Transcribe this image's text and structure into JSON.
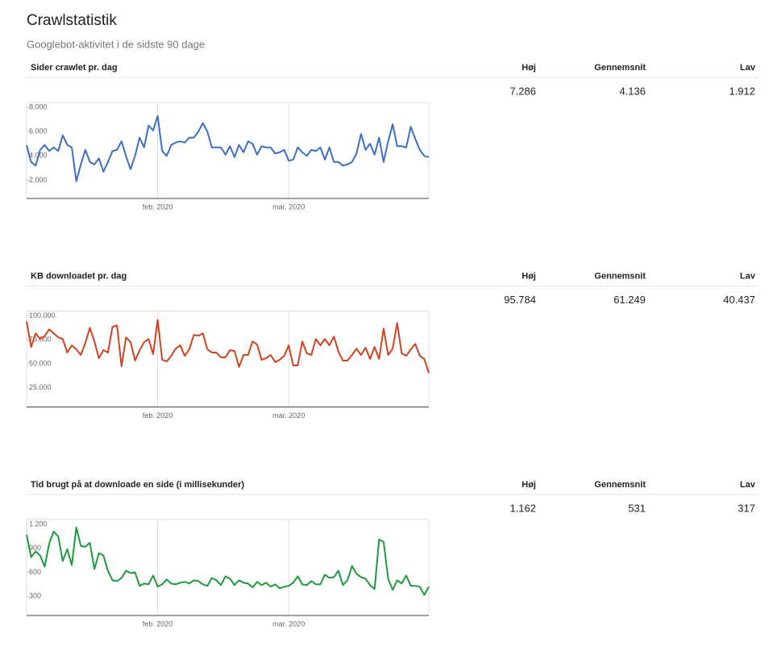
{
  "header": {
    "title": "Crawlstatistik",
    "subtitle": "Googlebot-aktivitet i de sidste 90 dage"
  },
  "sections": [
    {
      "stats": {
        "headers": [
          "Høj",
          "Gennemsnit",
          "Lav"
        ],
        "values": [
          "7.286",
          "4.136",
          "1.912"
        ]
      }
    },
    {
      "stats": {
        "headers": [
          "Høj",
          "Gennemsnit",
          "Lav"
        ],
        "values": [
          "95.784",
          "61.249",
          "40.437"
        ]
      }
    },
    {
      "stats": {
        "headers": [
          "Høj",
          "Gennemsnit",
          "Lav"
        ],
        "values": [
          "1.162",
          "531",
          "317"
        ]
      }
    }
  ],
  "chart_data": [
    {
      "type": "line",
      "title": "Sider crawlet pr. dag",
      "categories": [
        null,
        null,
        null,
        null,
        null,
        null,
        null,
        null,
        null,
        null,
        null,
        null,
        null,
        null,
        null,
        null,
        null,
        null,
        null,
        null,
        null,
        null,
        null,
        null,
        null,
        null,
        null,
        null,
        null,
        "feb. 2020",
        null,
        null,
        null,
        null,
        null,
        null,
        null,
        null,
        null,
        null,
        null,
        null,
        null,
        null,
        null,
        null,
        null,
        null,
        null,
        null,
        null,
        null,
        null,
        null,
        null,
        null,
        null,
        null,
        "mar. 2020",
        null,
        null,
        null,
        null,
        null,
        null,
        null,
        null,
        null,
        null,
        null,
        null,
        null,
        null,
        null,
        null,
        null,
        null,
        null,
        null,
        null,
        null,
        null,
        null,
        null,
        null,
        null,
        null,
        null,
        null,
        null
      ],
      "series": [
        {
          "color": "#3c6ec6",
          "values": [
            4870,
            3500,
            3200,
            4500,
            4900,
            4400,
            4700,
            4400,
            5700,
            4900,
            4700,
            1912,
            3300,
            4500,
            3500,
            3300,
            3800,
            2700,
            3500,
            4400,
            4500,
            5200,
            4000,
            2900,
            4000,
            5500,
            4700,
            6500,
            6100,
            7286,
            4400,
            4000,
            4900,
            5100,
            5200,
            5100,
            5500,
            5500,
            6000,
            6700,
            6000,
            4700,
            4700,
            4700,
            4100,
            4800,
            3900,
            4900,
            4300,
            5200,
            5000,
            4100,
            4800,
            4700,
            4700,
            4200,
            4300,
            4500,
            3600,
            3700,
            4700,
            4300,
            4000,
            4500,
            4400,
            4700,
            3700,
            4700,
            3500,
            3500,
            3200,
            3300,
            3500,
            4200,
            5800,
            4500,
            5000,
            4100,
            5500,
            3500,
            5200,
            6600,
            4800,
            4800,
            4700,
            6400,
            5400,
            4500,
            4000,
            3900
          ]
        }
      ],
      "ylim": [
        500,
        8400
      ],
      "yticks": [
        {
          "value": 2000,
          "label": "2.000"
        },
        {
          "value": 4000,
          "label": "4.000"
        },
        {
          "value": 6000,
          "label": "6.000"
        },
        {
          "value": 8000,
          "label": "8.000"
        }
      ]
    },
    {
      "type": "line",
      "title": "KB downloadet pr. dag",
      "categories": [
        null,
        null,
        null,
        null,
        null,
        null,
        null,
        null,
        null,
        null,
        null,
        null,
        null,
        null,
        null,
        null,
        null,
        null,
        null,
        null,
        null,
        null,
        null,
        null,
        null,
        null,
        null,
        null,
        null,
        "feb. 2020",
        null,
        null,
        null,
        null,
        null,
        null,
        null,
        null,
        null,
        null,
        null,
        null,
        null,
        null,
        null,
        null,
        null,
        null,
        null,
        null,
        null,
        null,
        null,
        null,
        null,
        null,
        null,
        null,
        "mar. 2020",
        null,
        null,
        null,
        null,
        null,
        null,
        null,
        null,
        null,
        null,
        null,
        null,
        null,
        null,
        null,
        null,
        null,
        null,
        null,
        null,
        null,
        null,
        null,
        null,
        null,
        null,
        null,
        null,
        null,
        null,
        null
      ],
      "series": [
        {
          "color": "#d2421f",
          "values": [
            94000,
            67500,
            81700,
            75800,
            79000,
            85800,
            81700,
            77500,
            75800,
            61700,
            69200,
            65000,
            59200,
            71700,
            87500,
            73300,
            55800,
            64200,
            61700,
            88300,
            90000,
            47500,
            77500,
            72500,
            53300,
            64000,
            72500,
            75800,
            60000,
            95784,
            54200,
            52500,
            58300,
            65800,
            69200,
            58300,
            65000,
            80000,
            79200,
            81700,
            65000,
            61700,
            61700,
            56700,
            56700,
            64200,
            63300,
            46700,
            59200,
            59200,
            73300,
            70000,
            54200,
            55800,
            59200,
            51700,
            54200,
            58300,
            69200,
            48300,
            48300,
            73300,
            60800,
            59200,
            75800,
            69200,
            75800,
            69200,
            78300,
            62500,
            53300,
            53300,
            59200,
            65800,
            59200,
            66700,
            55000,
            67500,
            55000,
            86700,
            59200,
            65800,
            92500,
            60800,
            58300,
            65000,
            70800,
            58300,
            55000,
            40437
          ]
        }
      ],
      "ylim": [
        5000,
        105000
      ],
      "yticks": [
        {
          "value": 25000,
          "label": "25.000"
        },
        {
          "value": 50000,
          "label": "50.000"
        },
        {
          "value": 75000,
          "label": "75.000"
        },
        {
          "value": 100000,
          "label": "100.000"
        }
      ]
    },
    {
      "type": "line",
      "title": "Tid brugt på at downloade en side (i millisekunder)",
      "categories": [
        null,
        null,
        null,
        null,
        null,
        null,
        null,
        null,
        null,
        null,
        null,
        null,
        null,
        null,
        null,
        null,
        null,
        null,
        null,
        null,
        null,
        null,
        null,
        null,
        null,
        null,
        null,
        null,
        null,
        "feb. 2020",
        null,
        null,
        null,
        null,
        null,
        null,
        null,
        null,
        null,
        null,
        null,
        null,
        null,
        null,
        null,
        null,
        null,
        null,
        null,
        null,
        null,
        null,
        null,
        null,
        null,
        null,
        null,
        null,
        "mar. 2020",
        null,
        null,
        null,
        null,
        null,
        null,
        null,
        null,
        null,
        null,
        null,
        null,
        null,
        null,
        null,
        null,
        null,
        null,
        null,
        null,
        null,
        null,
        null,
        null,
        null,
        null,
        null,
        null,
        null,
        null,
        null
      ],
      "series": [
        {
          "color": "#1e9a3c",
          "values": [
            1070,
            790,
            860,
            810,
            670,
            960,
            1110,
            1050,
            740,
            890,
            690,
            1162,
            930,
            920,
            970,
            640,
            840,
            810,
            620,
            500,
            490,
            530,
            620,
            590,
            600,
            430,
            460,
            450,
            560,
            420,
            450,
            510,
            460,
            450,
            470,
            480,
            460,
            500,
            490,
            450,
            430,
            530,
            500,
            440,
            550,
            520,
            440,
            500,
            470,
            460,
            410,
            480,
            440,
            470,
            420,
            450,
            400,
            420,
            430,
            470,
            550,
            450,
            440,
            490,
            450,
            450,
            570,
            530,
            540,
            620,
            440,
            500,
            680,
            580,
            540,
            520,
            440,
            390,
            1010,
            980,
            520,
            380,
            500,
            460,
            560,
            430,
            430,
            420,
            317,
            420
          ]
        }
      ],
      "ylim": [
        60,
        1260
      ],
      "yticks": [
        300,
        600,
        900,
        {
          "value": 1200,
          "label": "1.200"
        }
      ]
    }
  ]
}
